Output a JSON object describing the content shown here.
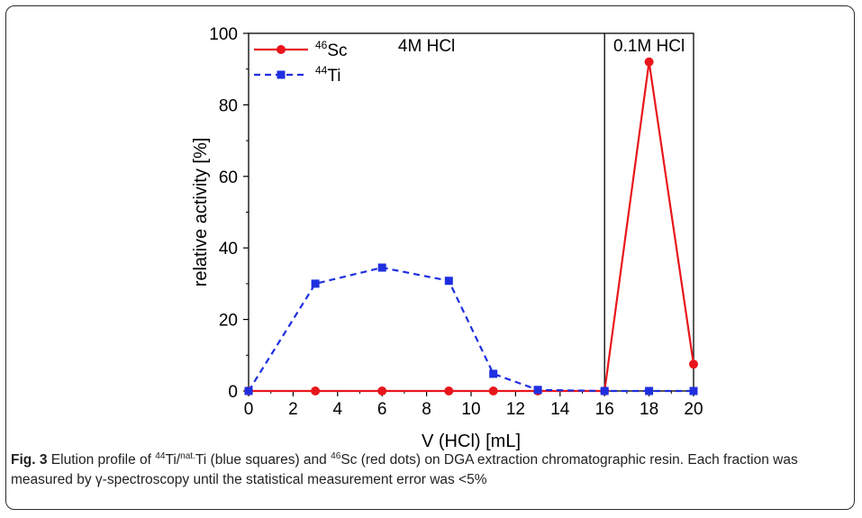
{
  "chart_data": {
    "type": "line",
    "xlabel": "V (HCl) [mL]",
    "ylabel": "relative activity [%]",
    "xlim": [
      0,
      20
    ],
    "ylim": [
      0,
      100
    ],
    "xticks": [
      0,
      2,
      4,
      6,
      8,
      10,
      12,
      14,
      16,
      18,
      20
    ],
    "yticks": [
      0,
      20,
      40,
      60,
      80,
      100
    ],
    "grid": false,
    "legend_position": "top-left",
    "regions": [
      {
        "label": "4M HCl",
        "x_range": [
          0,
          16
        ]
      },
      {
        "label": "0.1M HCl",
        "x_range": [
          16,
          20
        ]
      }
    ],
    "series": [
      {
        "name_sup": "46",
        "name": "Sc",
        "color": "#e8161c",
        "line_style": "solid",
        "marker": "circle",
        "x": [
          0,
          3,
          6,
          9,
          11,
          13,
          16,
          18,
          20
        ],
        "y": [
          0,
          0,
          0,
          0,
          0,
          0,
          0,
          92,
          7.5
        ]
      },
      {
        "name_sup": "44",
        "name": "Ti",
        "color": "#1f2fe0",
        "line_style": "dashed",
        "marker": "square",
        "x": [
          0,
          3,
          6,
          9,
          11,
          13,
          16,
          18,
          20
        ],
        "y": [
          0,
          30,
          34.5,
          30.8,
          4.8,
          0.3,
          0,
          0,
          0
        ]
      }
    ]
  },
  "caption": {
    "label": "Fig. 3",
    "p1": " Elution profile of ",
    "sup1": "44",
    "p2": "Ti/",
    "sup2": "nat.",
    "p3": "Ti (blue squares) and ",
    "sup3": "46",
    "p4": "Sc (red dots) on DGA extraction chromatographic resin. Each fraction was measured by γ-spectroscopy until the statistical measurement error was <5%"
  }
}
